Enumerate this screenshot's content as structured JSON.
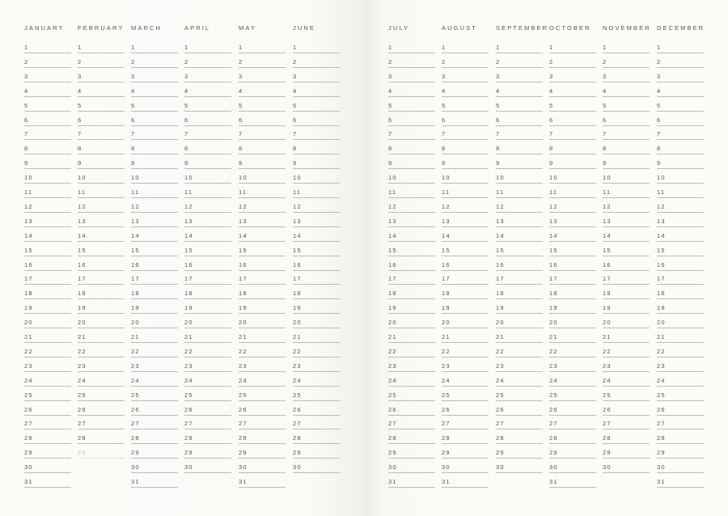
{
  "colors": {
    "paper": "#fbfaf7",
    "text": "#555555",
    "rule": "#bdbbb6",
    "muted": "#c4c2bd"
  },
  "pages": [
    {
      "months": [
        {
          "name": "JANUARY",
          "days": 31
        },
        {
          "name": "FEBRUARY",
          "days": 29,
          "muted_days": [
            29
          ]
        },
        {
          "name": "MARCH",
          "days": 31
        },
        {
          "name": "APRIL",
          "days": 30
        },
        {
          "name": "MAY",
          "days": 31
        },
        {
          "name": "JUNE",
          "days": 30
        }
      ]
    },
    {
      "months": [
        {
          "name": "JULY",
          "days": 31
        },
        {
          "name": "AUGUST",
          "days": 31
        },
        {
          "name": "SEPTEMBER",
          "days": 30
        },
        {
          "name": "OCTOBER",
          "days": 31
        },
        {
          "name": "NOVEMBER",
          "days": 30
        },
        {
          "name": "DECEMBER",
          "days": 31
        }
      ]
    }
  ]
}
